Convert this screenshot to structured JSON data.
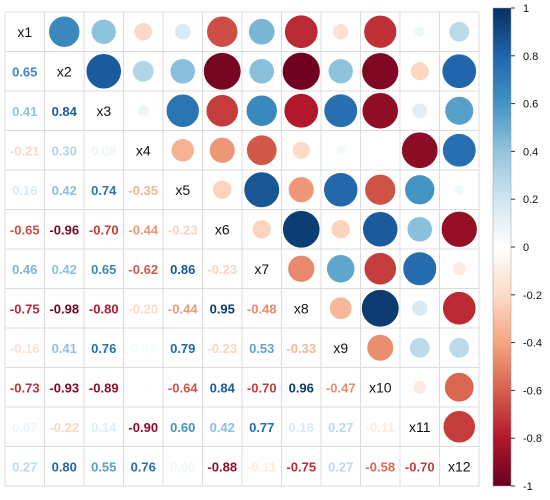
{
  "chart_data": {
    "type": "heatmap",
    "variables": [
      "x1",
      "x2",
      "x3",
      "x4",
      "x5",
      "x6",
      "x7",
      "x8",
      "x9",
      "x10",
      "x11",
      "x12"
    ],
    "matrix": [
      [
        1,
        0.65,
        0.41,
        -0.21,
        0.16,
        -0.65,
        0.46,
        -0.75,
        -0.16,
        -0.73,
        0.07,
        0.27
      ],
      [
        0.65,
        1,
        0.84,
        0.3,
        0.42,
        -0.96,
        0.42,
        -0.98,
        0.41,
        -0.93,
        -0.22,
        0.8
      ],
      [
        0.41,
        0.84,
        1,
        0.08,
        0.74,
        -0.7,
        0.65,
        -0.8,
        0.76,
        -0.89,
        0.14,
        0.55
      ],
      [
        -0.21,
        0.3,
        0.08,
        1,
        -0.35,
        -0.44,
        -0.62,
        -0.2,
        0.05,
        0.01,
        -0.9,
        0.76
      ],
      [
        0.16,
        0.42,
        0.74,
        -0.35,
        1,
        -0.23,
        0.86,
        -0.44,
        0.79,
        -0.64,
        0.6,
        0.06
      ],
      [
        -0.65,
        -0.96,
        -0.7,
        -0.44,
        -0.23,
        1,
        -0.23,
        0.95,
        -0.23,
        0.84,
        0.42,
        -0.88
      ],
      [
        0.46,
        0.42,
        0.65,
        -0.62,
        0.86,
        -0.23,
        1,
        -0.48,
        0.53,
        -0.7,
        0.77,
        -0.11
      ],
      [
        -0.75,
        -0.98,
        -0.8,
        -0.2,
        -0.44,
        0.95,
        -0.48,
        1,
        -0.33,
        0.96,
        0.16,
        -0.75
      ],
      [
        -0.16,
        0.41,
        0.76,
        0.05,
        0.79,
        -0.23,
        0.53,
        -0.33,
        1,
        -0.47,
        0.27,
        0.27
      ],
      [
        -0.73,
        -0.93,
        -0.89,
        0.01,
        -0.64,
        0.84,
        -0.7,
        0.96,
        -0.47,
        1,
        -0.11,
        -0.58
      ],
      [
        0.07,
        -0.22,
        0.14,
        -0.9,
        0.6,
        0.42,
        0.77,
        0.16,
        0.27,
        -0.11,
        1,
        -0.7
      ],
      [
        0.27,
        0.8,
        0.55,
        0.76,
        0.06,
        -0.88,
        -0.11,
        -0.75,
        0.27,
        -0.58,
        -0.7,
        1
      ]
    ],
    "lower_triangle": "numbers",
    "upper_triangle": "circles",
    "diagonal": "variable names",
    "color_scale": {
      "min": -1,
      "max": 1,
      "ticks": [
        1,
        0.8,
        0.6,
        0.4,
        0.2,
        0,
        -0.2,
        -0.4,
        -0.6,
        -0.8,
        -1
      ],
      "tick_labels": [
        "1",
        "0.8",
        "0.6",
        "0.4",
        "0.2",
        "0",
        "-0.2",
        "-0.4",
        "-0.6",
        "-0.8",
        "-1"
      ],
      "stops": [
        "#67001F",
        "#B2182B",
        "#D6604D",
        "#F4A582",
        "#FDDBC7",
        "#FFFFFF",
        "#D1E5F0",
        "#92C5DE",
        "#4393C3",
        "#2166AC",
        "#053061"
      ]
    },
    "grid": true,
    "legend": "right"
  }
}
